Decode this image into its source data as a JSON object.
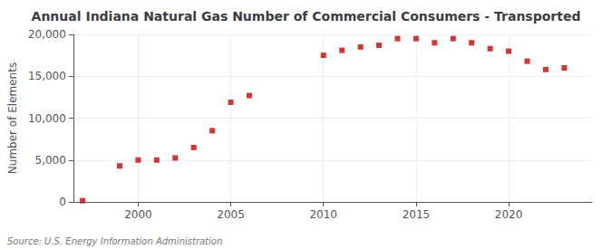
{
  "chart_data": {
    "type": "scatter",
    "title": "Annual Indiana Natural Gas Number of Commercial Consumers - Transported",
    "ylabel": "Number of Elements",
    "annotation": "Source: U.S. Energy Information Administration",
    "x": [
      1997,
      1999,
      2000,
      2001,
      2002,
      2003,
      2004,
      2005,
      2006,
      2010,
      2011,
      2012,
      2013,
      2014,
      2015,
      2016,
      2017,
      2018,
      2019,
      2020,
      2021,
      2022,
      2023
    ],
    "values": [
      150,
      4300,
      5000,
      5000,
      5250,
      6500,
      8500,
      11900,
      12700,
      17500,
      18100,
      18500,
      18700,
      19500,
      19500,
      19000,
      19500,
      19000,
      18300,
      18000,
      16800,
      15800,
      16000
    ],
    "color": "#cc0000",
    "marker": "square",
    "xlim": [
      1996.5,
      2024.5
    ],
    "xticks": [
      2000,
      2005,
      2010,
      2015,
      2020
    ],
    "ylim": [
      0,
      20000
    ],
    "yticks": [
      0,
      {
        "value": 5000,
        "label": "5,000"
      },
      {
        "value": 10000,
        "label": "10,000"
      },
      {
        "value": 15000,
        "label": "15,000"
      },
      {
        "value": 20000,
        "label": "20,000"
      }
    ],
    "grid": true
  }
}
